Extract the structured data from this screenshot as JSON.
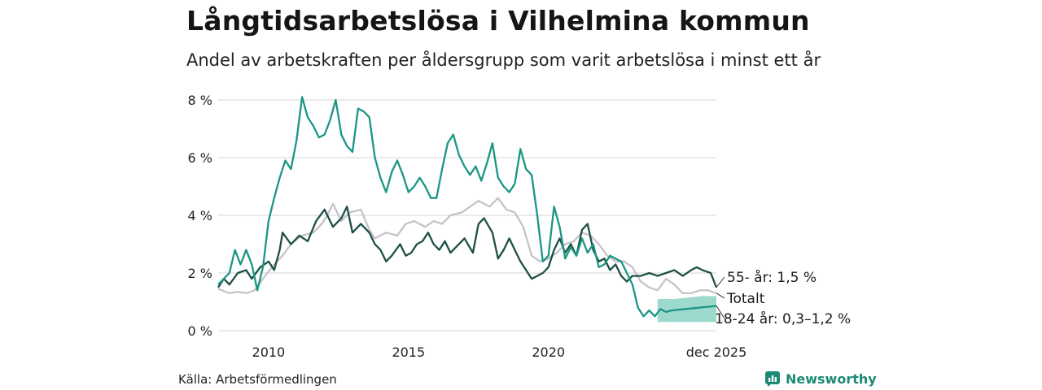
{
  "header": {
    "title": "Långtidsarbetslösa i Vilhelmina kommun",
    "subtitle": "Andel av arbetskraften per åldersgrupp som varit arbetslösa i minst ett år"
  },
  "footer": {
    "source": "Källa: Arbetsförmedlingen",
    "brand": "Newsworthy"
  },
  "colors": {
    "young": "#1a9684",
    "young_band": "#9ed9cd",
    "old": "#1e4f45",
    "total": "#c7c2cb",
    "grid": "#dddddd",
    "brand": "#1c8a74"
  },
  "chart_data": {
    "type": "line",
    "title": "Långtidsarbetslösa i Vilhelmina kommun",
    "ylabel": "",
    "xlabel": "",
    "ylim": [
      0,
      8
    ],
    "yticks": [
      0,
      2,
      4,
      6,
      8
    ],
    "ytick_labels": [
      "0 %",
      "2 %",
      "4 %",
      "6 %",
      "8 %"
    ],
    "x_range": [
      2008.2,
      2026.0
    ],
    "xticks": [
      2010,
      2015,
      2020,
      2026.0
    ],
    "xtick_labels": [
      "2010",
      "2015",
      "2020",
      "dec 2025"
    ],
    "grid": true,
    "legend": "inline labels at right end of lines",
    "series": [
      {
        "name": "Totalt",
        "label": "Totalt",
        "color": "#c7c2cb",
        "points": [
          [
            2008.2,
            1.45
          ],
          [
            2008.6,
            1.3
          ],
          [
            2008.9,
            1.35
          ],
          [
            2009.2,
            1.3
          ],
          [
            2009.5,
            1.4
          ],
          [
            2009.8,
            1.8
          ],
          [
            2010.2,
            2.3
          ],
          [
            2010.5,
            2.6
          ],
          [
            2010.8,
            3.0
          ],
          [
            2011.2,
            3.3
          ],
          [
            2011.6,
            3.4
          ],
          [
            2011.9,
            3.7
          ],
          [
            2012.1,
            4.0
          ],
          [
            2012.3,
            4.4
          ],
          [
            2012.6,
            3.8
          ],
          [
            2012.9,
            4.1
          ],
          [
            2013.3,
            4.2
          ],
          [
            2013.6,
            3.5
          ],
          [
            2013.8,
            3.2
          ],
          [
            2014.2,
            3.4
          ],
          [
            2014.6,
            3.3
          ],
          [
            2014.9,
            3.7
          ],
          [
            2015.2,
            3.8
          ],
          [
            2015.6,
            3.6
          ],
          [
            2015.9,
            3.8
          ],
          [
            2016.2,
            3.7
          ],
          [
            2016.5,
            4.0
          ],
          [
            2016.9,
            4.1
          ],
          [
            2017.2,
            4.3
          ],
          [
            2017.5,
            4.5
          ],
          [
            2017.9,
            4.3
          ],
          [
            2018.2,
            4.6
          ],
          [
            2018.5,
            4.2
          ],
          [
            2018.8,
            4.1
          ],
          [
            2019.1,
            3.6
          ],
          [
            2019.4,
            2.6
          ],
          [
            2019.7,
            2.4
          ],
          [
            2020.0,
            2.5
          ],
          [
            2020.3,
            2.7
          ],
          [
            2020.6,
            3.0
          ],
          [
            2020.9,
            3.1
          ],
          [
            2021.2,
            3.4
          ],
          [
            2021.5,
            3.3
          ],
          [
            2021.8,
            3.0
          ],
          [
            2022.1,
            2.6
          ],
          [
            2022.4,
            2.4
          ],
          [
            2022.7,
            2.4
          ],
          [
            2023.0,
            2.2
          ],
          [
            2023.3,
            1.7
          ],
          [
            2023.6,
            1.5
          ],
          [
            2023.9,
            1.4
          ],
          [
            2024.2,
            1.8
          ],
          [
            2024.5,
            1.6
          ],
          [
            2024.8,
            1.3
          ],
          [
            2025.1,
            1.3
          ],
          [
            2025.4,
            1.4
          ],
          [
            2025.7,
            1.4
          ],
          [
            2026.0,
            1.3
          ]
        ]
      },
      {
        "name": "55- år",
        "label": "55- år: 1,5 %",
        "color": "#1e4f45",
        "points": [
          [
            2008.2,
            1.5
          ],
          [
            2008.4,
            1.8
          ],
          [
            2008.6,
            1.6
          ],
          [
            2008.9,
            2.0
          ],
          [
            2009.2,
            2.1
          ],
          [
            2009.4,
            1.8
          ],
          [
            2009.7,
            2.2
          ],
          [
            2010.0,
            2.4
          ],
          [
            2010.2,
            2.1
          ],
          [
            2010.4,
            2.8
          ],
          [
            2010.5,
            3.4
          ],
          [
            2010.8,
            3.0
          ],
          [
            2011.1,
            3.3
          ],
          [
            2011.4,
            3.1
          ],
          [
            2011.7,
            3.8
          ],
          [
            2012.0,
            4.2
          ],
          [
            2012.3,
            3.6
          ],
          [
            2012.6,
            3.9
          ],
          [
            2012.8,
            4.3
          ],
          [
            2013.0,
            3.4
          ],
          [
            2013.3,
            3.7
          ],
          [
            2013.6,
            3.4
          ],
          [
            2013.8,
            3.0
          ],
          [
            2014.0,
            2.8
          ],
          [
            2014.2,
            2.4
          ],
          [
            2014.4,
            2.6
          ],
          [
            2014.7,
            3.0
          ],
          [
            2014.9,
            2.6
          ],
          [
            2015.1,
            2.7
          ],
          [
            2015.3,
            3.0
          ],
          [
            2015.5,
            3.1
          ],
          [
            2015.7,
            3.4
          ],
          [
            2015.9,
            3.0
          ],
          [
            2016.1,
            2.8
          ],
          [
            2016.3,
            3.1
          ],
          [
            2016.5,
            2.7
          ],
          [
            2016.7,
            2.9
          ],
          [
            2017.0,
            3.2
          ],
          [
            2017.3,
            2.7
          ],
          [
            2017.5,
            3.7
          ],
          [
            2017.7,
            3.9
          ],
          [
            2018.0,
            3.4
          ],
          [
            2018.2,
            2.5
          ],
          [
            2018.4,
            2.8
          ],
          [
            2018.6,
            3.2
          ],
          [
            2018.8,
            2.8
          ],
          [
            2019.0,
            2.4
          ],
          [
            2019.2,
            2.1
          ],
          [
            2019.4,
            1.8
          ],
          [
            2019.6,
            1.9
          ],
          [
            2019.8,
            2.0
          ],
          [
            2020.0,
            2.2
          ],
          [
            2020.2,
            2.8
          ],
          [
            2020.4,
            3.2
          ],
          [
            2020.6,
            2.7
          ],
          [
            2020.8,
            3.0
          ],
          [
            2021.0,
            2.6
          ],
          [
            2021.2,
            3.5
          ],
          [
            2021.4,
            3.7
          ],
          [
            2021.6,
            2.8
          ],
          [
            2021.8,
            2.4
          ],
          [
            2022.0,
            2.5
          ],
          [
            2022.2,
            2.1
          ],
          [
            2022.4,
            2.3
          ],
          [
            2022.6,
            1.9
          ],
          [
            2022.8,
            1.7
          ],
          [
            2023.0,
            1.9
          ],
          [
            2023.3,
            1.9
          ],
          [
            2023.6,
            2.0
          ],
          [
            2023.9,
            1.9
          ],
          [
            2024.2,
            2.0
          ],
          [
            2024.5,
            2.1
          ],
          [
            2024.8,
            1.9
          ],
          [
            2025.1,
            2.1
          ],
          [
            2025.3,
            2.2
          ],
          [
            2025.5,
            2.1
          ],
          [
            2025.8,
            2.0
          ],
          [
            2026.0,
            1.5
          ]
        ]
      },
      {
        "name": "18-24 år",
        "label": "18-24 år: 0,3–1,2 %",
        "color": "#1a9684",
        "points": [
          [
            2008.2,
            1.6
          ],
          [
            2008.4,
            1.8
          ],
          [
            2008.6,
            2.0
          ],
          [
            2008.8,
            2.8
          ],
          [
            2009.0,
            2.3
          ],
          [
            2009.2,
            2.8
          ],
          [
            2009.4,
            2.3
          ],
          [
            2009.6,
            1.4
          ],
          [
            2009.8,
            2.2
          ],
          [
            2010.0,
            3.8
          ],
          [
            2010.2,
            4.6
          ],
          [
            2010.4,
            5.3
          ],
          [
            2010.6,
            5.9
          ],
          [
            2010.8,
            5.6
          ],
          [
            2011.0,
            6.6
          ],
          [
            2011.2,
            8.1
          ],
          [
            2011.4,
            7.4
          ],
          [
            2011.6,
            7.1
          ],
          [
            2011.8,
            6.7
          ],
          [
            2012.0,
            6.8
          ],
          [
            2012.2,
            7.3
          ],
          [
            2012.4,
            8.0
          ],
          [
            2012.6,
            6.8
          ],
          [
            2012.8,
            6.4
          ],
          [
            2013.0,
            6.2
          ],
          [
            2013.2,
            7.7
          ],
          [
            2013.4,
            7.6
          ],
          [
            2013.6,
            7.4
          ],
          [
            2013.8,
            6.0
          ],
          [
            2014.0,
            5.3
          ],
          [
            2014.2,
            4.8
          ],
          [
            2014.4,
            5.5
          ],
          [
            2014.6,
            5.9
          ],
          [
            2014.8,
            5.4
          ],
          [
            2015.0,
            4.8
          ],
          [
            2015.2,
            5.0
          ],
          [
            2015.4,
            5.3
          ],
          [
            2015.6,
            5.0
          ],
          [
            2015.8,
            4.6
          ],
          [
            2016.0,
            4.6
          ],
          [
            2016.2,
            5.6
          ],
          [
            2016.4,
            6.5
          ],
          [
            2016.6,
            6.8
          ],
          [
            2016.8,
            6.1
          ],
          [
            2017.0,
            5.7
          ],
          [
            2017.2,
            5.4
          ],
          [
            2017.4,
            5.7
          ],
          [
            2017.6,
            5.2
          ],
          [
            2017.8,
            5.8
          ],
          [
            2018.0,
            6.5
          ],
          [
            2018.2,
            5.3
          ],
          [
            2018.4,
            5.0
          ],
          [
            2018.6,
            4.8
          ],
          [
            2018.8,
            5.1
          ],
          [
            2019.0,
            6.3
          ],
          [
            2019.2,
            5.6
          ],
          [
            2019.4,
            5.4
          ],
          [
            2019.6,
            4.0
          ],
          [
            2019.8,
            2.4
          ],
          [
            2020.0,
            2.6
          ],
          [
            2020.2,
            4.3
          ],
          [
            2020.4,
            3.6
          ],
          [
            2020.6,
            2.5
          ],
          [
            2020.8,
            2.9
          ],
          [
            2021.0,
            2.6
          ],
          [
            2021.2,
            3.2
          ],
          [
            2021.4,
            2.7
          ],
          [
            2021.6,
            3.0
          ],
          [
            2021.8,
            2.2
          ],
          [
            2022.0,
            2.3
          ],
          [
            2022.2,
            2.6
          ],
          [
            2022.4,
            2.5
          ],
          [
            2022.6,
            2.4
          ],
          [
            2022.8,
            2.0
          ],
          [
            2023.0,
            1.6
          ],
          [
            2023.2,
            0.8
          ],
          [
            2023.4,
            0.5
          ],
          [
            2023.6,
            0.7
          ],
          [
            2023.8,
            0.5
          ],
          [
            2024.0,
            0.75
          ],
          [
            2024.2,
            0.65
          ],
          [
            2024.4,
            0.7
          ],
          [
            2024.6,
            0.72
          ],
          [
            2024.8,
            0.74
          ],
          [
            2025.0,
            0.76
          ],
          [
            2025.2,
            0.78
          ],
          [
            2025.4,
            0.8
          ],
          [
            2025.6,
            0.82
          ],
          [
            2025.8,
            0.84
          ],
          [
            2026.0,
            0.86
          ]
        ]
      }
    ],
    "uncertainty_band": {
      "series": "18-24 år",
      "color": "#9ed9cd",
      "points": [
        [
          2023.9,
          0.3,
          1.1
        ],
        [
          2024.5,
          0.3,
          1.1
        ],
        [
          2025.0,
          0.3,
          1.15
        ],
        [
          2025.5,
          0.3,
          1.2
        ],
        [
          2026.0,
          0.3,
          1.2
        ]
      ]
    }
  }
}
